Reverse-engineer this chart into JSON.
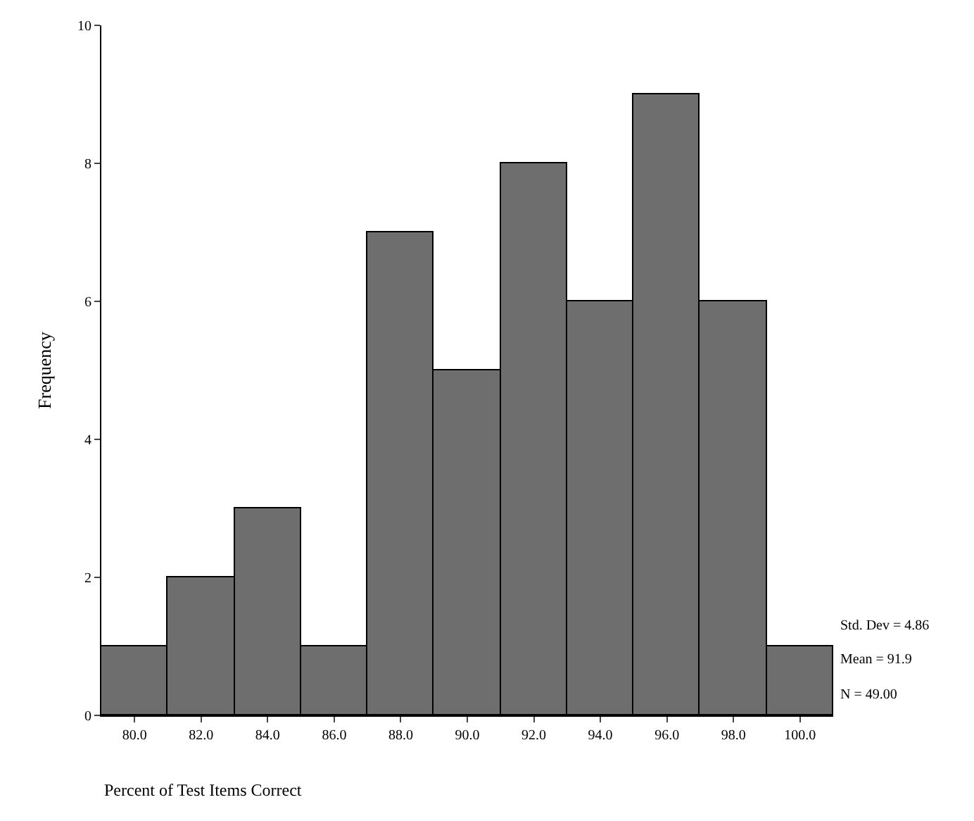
{
  "chart_data": {
    "type": "histogram",
    "xlabel": "Percent of Test Items Correct",
    "ylabel": "Frequency",
    "bins": [
      79,
      81,
      83,
      85,
      87,
      89,
      91,
      93,
      95,
      97,
      99,
      101
    ],
    "values": [
      1,
      2,
      3,
      1,
      7,
      5,
      8,
      6,
      9,
      6,
      1
    ],
    "color": "#6e6e6e",
    "xlim": [
      79,
      101
    ],
    "xticks": [
      {
        "value": 80,
        "label": "80.0"
      },
      {
        "value": 82,
        "label": "82.0"
      },
      {
        "value": 84,
        "label": "84.0"
      },
      {
        "value": 86,
        "label": "86.0"
      },
      {
        "value": 88,
        "label": "88.0"
      },
      {
        "value": 90,
        "label": "90.0"
      },
      {
        "value": 92,
        "label": "92.0"
      },
      {
        "value": 94,
        "label": "94.0"
      },
      {
        "value": 96,
        "label": "96.0"
      },
      {
        "value": 98,
        "label": "98.0"
      },
      {
        "value": 100,
        "label": "100.0"
      }
    ],
    "ylim": [
      0,
      10
    ],
    "yticks": [
      0,
      2,
      4,
      6,
      8,
      10
    ],
    "annotations": [
      "Std. Dev = 4.86",
      "Mean = 91.9",
      "N = 49.00"
    ]
  }
}
